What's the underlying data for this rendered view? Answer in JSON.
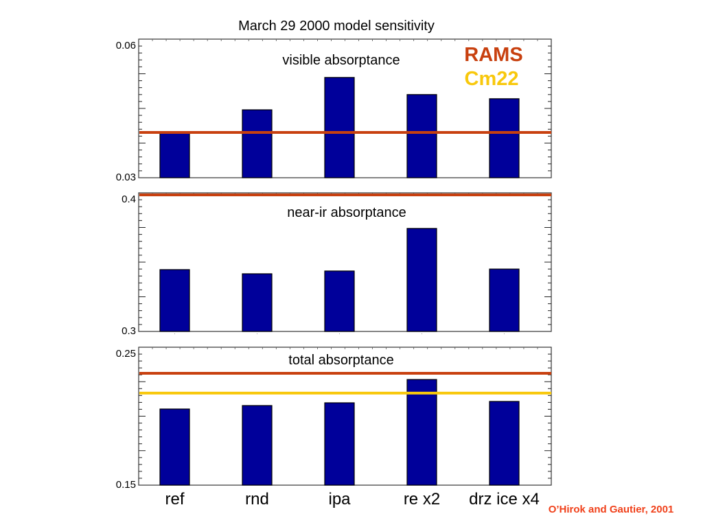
{
  "chart_data": {
    "type": "bar",
    "title": "March 29 2000 model sensitivity",
    "categories": [
      "ref",
      "rnd",
      "ipa",
      "re x2",
      "drz ice x4"
    ],
    "legend": {
      "placement": "top-right",
      "entries": [
        {
          "name": "RAMS",
          "color": "#c8400f"
        },
        {
          "name": "Cm22",
          "color": "#f8c80c"
        }
      ]
    },
    "bar_color": "#00009a",
    "bar_edge_color": "#000000",
    "credit": {
      "text": "O’Hirok and Gautier, 2001",
      "color": "#f0401a"
    },
    "panels": [
      {
        "label": "visible absorptance",
        "ylim": [
          0.03,
          0.06
        ],
        "ytick_labels": [
          "0.03",
          "0.06"
        ],
        "values": [
          0.0397,
          0.0447,
          0.0517,
          0.048,
          0.0471
        ],
        "reference_lines": [
          {
            "name": "RAMS",
            "value": 0.0398,
            "color": "#c8400f"
          }
        ]
      },
      {
        "label": "near-ir absorptance",
        "ylim": [
          0.3,
          0.4
        ],
        "ytick_labels": [
          "0.3",
          "0.4"
        ],
        "values": [
          0.3446,
          0.3416,
          0.3436,
          0.3743,
          0.345
        ],
        "reference_lines": [
          {
            "name": "RAMS",
            "value": 0.3985,
            "color": "#c8400f"
          }
        ]
      },
      {
        "label": "total absorptance",
        "ylim": [
          0.15,
          0.25
        ],
        "ytick_labels": [
          "0.15",
          "0.25"
        ],
        "values": [
          0.2052,
          0.2077,
          0.2097,
          0.2266,
          0.2107
        ],
        "reference_lines": [
          {
            "name": "RAMS",
            "value": 0.2311,
            "color": "#c8400f"
          },
          {
            "name": "Cm22",
            "value": 0.2167,
            "color": "#f8c80c"
          }
        ]
      }
    ],
    "xlabel": "",
    "ylabel": "",
    "grid": false
  }
}
